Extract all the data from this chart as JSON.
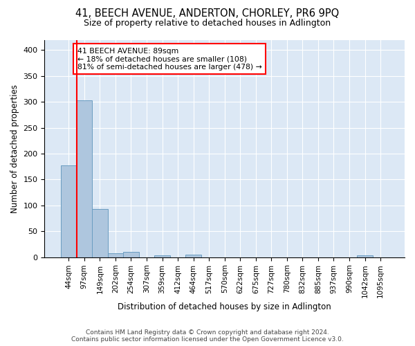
{
  "title": "41, BEECH AVENUE, ANDERTON, CHORLEY, PR6 9PQ",
  "subtitle": "Size of property relative to detached houses in Adlington",
  "xlabel": "Distribution of detached houses by size in Adlington",
  "ylabel": "Number of detached properties",
  "bar_labels": [
    "44sqm",
    "97sqm",
    "149sqm",
    "202sqm",
    "254sqm",
    "307sqm",
    "359sqm",
    "412sqm",
    "464sqm",
    "517sqm",
    "570sqm",
    "622sqm",
    "675sqm",
    "727sqm",
    "780sqm",
    "832sqm",
    "885sqm",
    "937sqm",
    "990sqm",
    "1042sqm",
    "1095sqm"
  ],
  "bar_values": [
    178,
    303,
    93,
    8,
    10,
    0,
    3,
    0,
    5,
    0,
    0,
    0,
    0,
    0,
    0,
    0,
    0,
    0,
    0,
    4,
    0
  ],
  "bar_color": "#aec6de",
  "bar_edge_color": "#6a9cc0",
  "ylim": [
    0,
    420
  ],
  "yticks": [
    0,
    50,
    100,
    150,
    200,
    250,
    300,
    350,
    400
  ],
  "background_color": "#dce8f5",
  "annotation_box_text_line1": "41 BEECH AVENUE: 89sqm",
  "annotation_box_text_line2": "← 18% of detached houses are smaller (108)",
  "annotation_box_text_line3": "81% of semi-detached houses are larger (478) →",
  "red_line_x": 0.5,
  "footer_line1": "Contains HM Land Registry data © Crown copyright and database right 2024.",
  "footer_line2": "Contains public sector information licensed under the Open Government Licence v3.0."
}
